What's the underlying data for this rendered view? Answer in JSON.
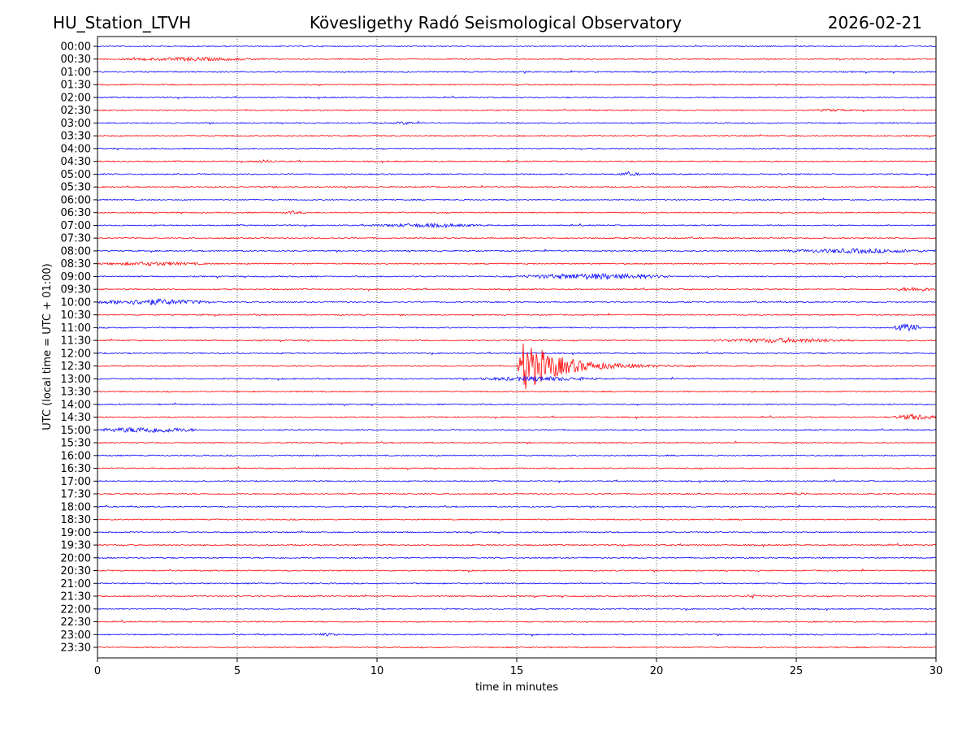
{
  "chart_data": {
    "type": "line",
    "title_left": "HU_Station_LTVH",
    "title": "Kövesligethy Radó Seismological Observatory",
    "title_right": "2026-02-21",
    "xlabel": "time in minutes",
    "ylabel": "UTC (local time = UTC + 01:00)",
    "xlim": [
      0,
      30
    ],
    "xticks": [
      "0",
      "5",
      "10",
      "15",
      "20",
      "25",
      "30"
    ],
    "xtick_values": [
      0,
      5,
      10,
      15,
      20,
      25,
      30
    ],
    "grid": "vertical dotted",
    "rows": [
      "00:00",
      "00:30",
      "01:00",
      "01:30",
      "02:00",
      "02:30",
      "03:00",
      "03:30",
      "04:00",
      "04:30",
      "05:00",
      "05:30",
      "06:00",
      "06:30",
      "07:00",
      "07:30",
      "08:00",
      "08:30",
      "09:00",
      "09:30",
      "10:00",
      "10:30",
      "11:00",
      "11:30",
      "12:00",
      "12:30",
      "13:00",
      "13:30",
      "14:00",
      "14:30",
      "15:00",
      "15:30",
      "16:00",
      "16:30",
      "17:00",
      "17:30",
      "18:00",
      "18:30",
      "19:00",
      "19:30",
      "20:00",
      "20:30",
      "21:00",
      "21:30",
      "22:00",
      "22:30",
      "23:00",
      "23:30"
    ],
    "colors": [
      "#0000ff",
      "#ff0000"
    ],
    "events": [
      {
        "row": "00:30",
        "start": 0.8,
        "end": 6,
        "amp": 2.5
      },
      {
        "row": "02:30",
        "start": 25.5,
        "end": 27,
        "amp": 1.8
      },
      {
        "row": "03:00",
        "start": 10.5,
        "end": 11.5,
        "amp": 2
      },
      {
        "row": "04:30",
        "start": 5.5,
        "end": 6.5,
        "amp": 2
      },
      {
        "row": "05:00",
        "start": 18.5,
        "end": 19.5,
        "amp": 2.5
      },
      {
        "row": "06:30",
        "start": 6.5,
        "end": 7.5,
        "amp": 2
      },
      {
        "row": "07:00",
        "start": 9.5,
        "end": 14,
        "amp": 2.5
      },
      {
        "row": "08:00",
        "start": 24.5,
        "end": 30,
        "amp": 3
      },
      {
        "row": "08:30",
        "start": 0,
        "end": 4,
        "amp": 2.5
      },
      {
        "row": "09:00",
        "start": 15,
        "end": 20.5,
        "amp": 4
      },
      {
        "row": "09:30",
        "start": 28.5,
        "end": 30,
        "amp": 3
      },
      {
        "row": "10:00",
        "start": 0,
        "end": 4,
        "amp": 4
      },
      {
        "row": "11:00",
        "start": 28.5,
        "end": 29.5,
        "amp": 5
      },
      {
        "row": "11:30",
        "start": 22,
        "end": 27,
        "amp": 3
      },
      {
        "row": "12:30",
        "start": 15,
        "end": 22,
        "amp": 32,
        "type": "earthquake"
      },
      {
        "row": "13:00",
        "start": 13.5,
        "end": 18,
        "amp": 3
      },
      {
        "row": "14:30",
        "start": 28.5,
        "end": 30,
        "amp": 4
      },
      {
        "row": "15:00",
        "start": 0,
        "end": 3.5,
        "amp": 4
      },
      {
        "row": "17:30",
        "start": 24.5,
        "end": 25.5,
        "amp": 2
      },
      {
        "row": "21:30",
        "start": 23.2,
        "end": 23.6,
        "amp": 3
      },
      {
        "row": "23:00",
        "start": 7.7,
        "end": 8.7,
        "amp": 2
      }
    ]
  }
}
